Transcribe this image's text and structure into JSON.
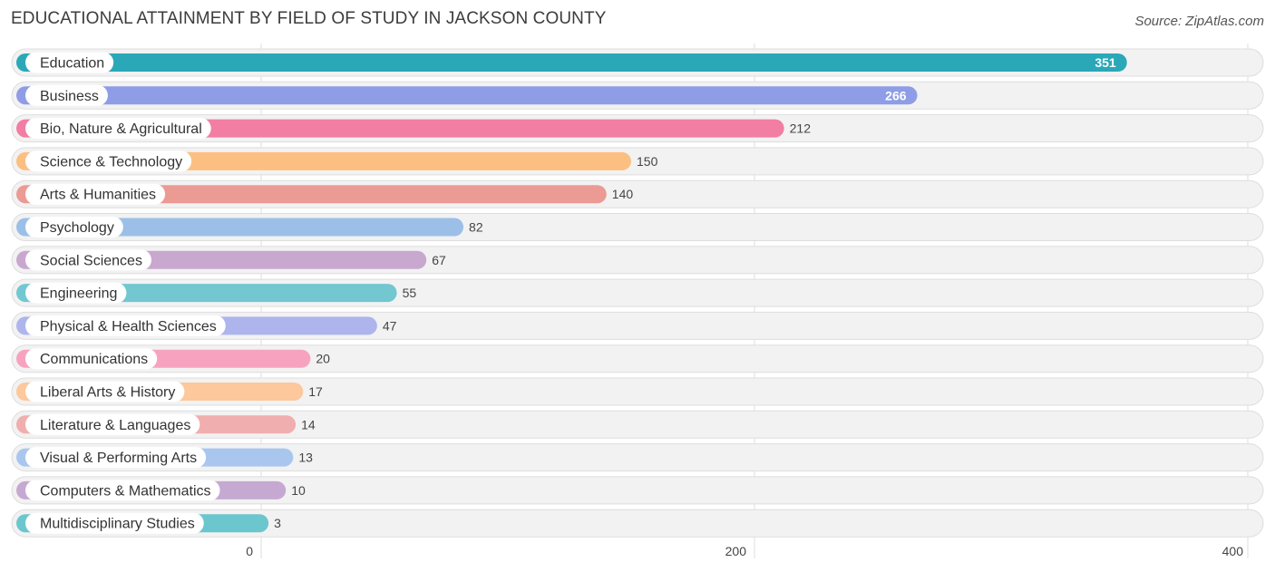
{
  "title": "EDUCATIONAL ATTAINMENT BY FIELD OF STUDY IN JACKSON COUNTY",
  "source": "Source: ZipAtlas.com",
  "chart_data": {
    "type": "bar",
    "orientation": "horizontal",
    "title": "EDUCATIONAL ATTAINMENT BY FIELD OF STUDY IN JACKSON COUNTY",
    "xlabel": "",
    "ylabel": "",
    "xlim": [
      0,
      400
    ],
    "ticks": [
      0,
      200,
      400
    ],
    "tick_labels": [
      "0",
      "200",
      "400"
    ],
    "grid": true,
    "categories": [
      "Education",
      "Business",
      "Bio, Nature & Agricultural",
      "Science & Technology",
      "Arts & Humanities",
      "Psychology",
      "Social Sciences",
      "Engineering",
      "Physical & Health Sciences",
      "Communications",
      "Liberal Arts & History",
      "Literature & Languages",
      "Visual & Performing Arts",
      "Computers & Mathematics",
      "Multidisciplinary Studies"
    ],
    "values": [
      351,
      266,
      212,
      150,
      140,
      82,
      67,
      55,
      47,
      20,
      17,
      14,
      13,
      10,
      3
    ],
    "colors": [
      "#2aa8b8",
      "#8e9de6",
      "#f27ea3",
      "#fcbf82",
      "#eb9a94",
      "#9cbfe8",
      "#c9a8cf",
      "#72c7d1",
      "#adb5ec",
      "#f7a3c0",
      "#fcc89c",
      "#f0aeae",
      "#a9c7ee",
      "#c6a9d2",
      "#6cc6cd"
    ]
  }
}
